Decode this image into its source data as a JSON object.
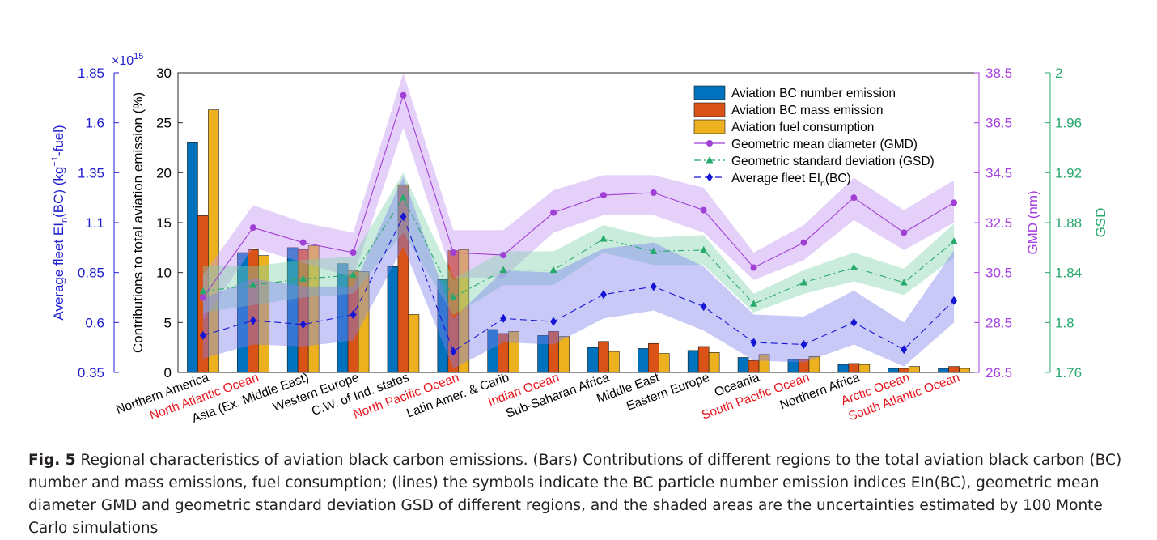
{
  "chart_data": {
    "type": "bar",
    "categories": [
      "Northern America",
      "North Atlantic Ocean",
      "Asia (Ex. Middle East)",
      "Western Europe",
      "C.W. of Ind. states",
      "North Pacific Ocean",
      "Latin Amer. & Carib",
      "Indian Ocean",
      "Sub-Saharan Africa",
      "Middle East",
      "Eastern Europe",
      "Oceania",
      "South Pacific Ocean",
      "Northern Africa",
      "Arctic Ocean",
      "South Atlantic Ocean"
    ],
    "ocean_categories": [
      "North Atlantic Ocean",
      "North Pacific Ocean",
      "Indian Ocean",
      "South Pacific Ocean",
      "Arctic Ocean",
      "South Atlantic Ocean"
    ],
    "bar_series": [
      {
        "name": "Aviation BC number emission",
        "color": "#0072bd",
        "values": [
          23,
          12,
          12.5,
          10.9,
          10.6,
          9.3,
          4.3,
          3.7,
          2.5,
          2.4,
          2.2,
          1.5,
          1.3,
          0.8,
          0.4,
          0.4
        ]
      },
      {
        "name": "Aviation BC mass emission",
        "color": "#d95319",
        "values": [
          15.7,
          12.3,
          12.3,
          10.2,
          18.8,
          12.2,
          3.9,
          4.1,
          3.1,
          2.9,
          2.6,
          1.2,
          1.3,
          0.9,
          0.4,
          0.6
        ]
      },
      {
        "name": "Aviation fuel consumption",
        "color": "#edb120",
        "values": [
          26.3,
          11.7,
          12.7,
          10.1,
          5.8,
          12.3,
          4.1,
          3.6,
          2.1,
          1.9,
          2.0,
          1.8,
          1.6,
          0.8,
          0.6,
          0.4
        ]
      }
    ],
    "line_series": [
      {
        "name": "Geometric mean diameter (GMD)",
        "axis": "GMD (nm)",
        "color": "#a03fd4",
        "band_color": "#c28ff0",
        "values": [
          29.5,
          32.3,
          31.7,
          31.3,
          37.6,
          31.3,
          31.2,
          32.9,
          33.6,
          33.7,
          33.0,
          30.7,
          31.7,
          33.5,
          32.1,
          33.3
        ],
        "lower": [
          28.6,
          31.5,
          30.9,
          30.3,
          36.3,
          30.3,
          30.3,
          32.1,
          32.8,
          32.8,
          32.1,
          30.2,
          31.0,
          32.6,
          31.4,
          32.5
        ],
        "upper": [
          30.4,
          33.2,
          32.5,
          32.1,
          38.5,
          32.2,
          32.2,
          33.8,
          34.4,
          34.4,
          33.9,
          31.3,
          32.4,
          34.3,
          33.0,
          34.2
        ]
      },
      {
        "name": "Geometric standard deviation (GSD)",
        "axis": "GSD",
        "color": "#27a86c",
        "band_color": "#7fd1ab",
        "values": [
          1.825,
          1.83,
          1.835,
          1.838,
          1.9,
          1.82,
          1.842,
          1.842,
          1.867,
          1.857,
          1.858,
          1.815,
          1.832,
          1.844,
          1.832,
          1.865
        ],
        "lower": [
          1.808,
          1.814,
          1.82,
          1.823,
          1.872,
          1.806,
          1.83,
          1.83,
          1.856,
          1.846,
          1.846,
          1.808,
          1.823,
          1.833,
          1.822,
          1.852
        ],
        "upper": [
          1.845,
          1.845,
          1.85,
          1.853,
          1.92,
          1.835,
          1.857,
          1.857,
          1.878,
          1.868,
          1.87,
          1.823,
          1.842,
          1.856,
          1.843,
          1.879
        ]
      },
      {
        "name": "Average fleet EIn(BC)",
        "axis": "Average fleet EIn(BC) (kg-1-fuel)",
        "color": "#1515d6",
        "band_color": "#7f7fee",
        "values": [
          0.535,
          0.61,
          0.59,
          0.64,
          1.13,
          0.455,
          0.62,
          0.605,
          0.74,
          0.78,
          0.68,
          0.5,
          0.49,
          0.6,
          0.465,
          0.71
        ],
        "lower": [
          0.42,
          0.49,
          0.48,
          0.51,
          0.98,
          0.37,
          0.5,
          0.49,
          0.62,
          0.66,
          0.56,
          0.41,
          0.4,
          0.49,
          0.38,
          0.6
        ],
        "upper": [
          0.72,
          0.82,
          0.78,
          0.78,
          1.33,
          0.62,
          0.86,
          0.85,
          0.97,
          1.0,
          0.88,
          0.64,
          0.63,
          0.76,
          0.6,
          0.96
        ]
      }
    ],
    "axes": {
      "left_outer": {
        "label": "Average fleet EIn(BC) (kg-1-fuel)",
        "multiplier": "×10",
        "exponent": "15",
        "range": [
          0.35,
          1.85
        ],
        "ticks": [
          "1.85",
          "1.6",
          "1.35",
          "1.1",
          "0.85",
          "0.6",
          "0.35"
        ],
        "color": "#2020d0"
      },
      "left_inner": {
        "label": "Contributions to total aviation emission (%)",
        "range": [
          0,
          30
        ],
        "ticks": [
          "30",
          "25",
          "20",
          "15",
          "10",
          "5",
          "0"
        ],
        "color": "#000000"
      },
      "right_gmd": {
        "label": "GMD (nm)",
        "range": [
          26.5,
          38.5
        ],
        "ticks": [
          "38.5",
          "36.5",
          "34.5",
          "32.5",
          "30.5",
          "28.5",
          "26.5"
        ],
        "color": "#a640e0"
      },
      "right_gsd": {
        "label": "GSD",
        "range": [
          1.76,
          2.0
        ],
        "ticks": [
          "2",
          "1.96",
          "1.92",
          "1.88",
          "1.84",
          "1.8",
          "1.76"
        ],
        "color": "#27a86c"
      }
    },
    "legend_position": "top-right"
  },
  "caption": {
    "label": "Fig. 5",
    "text": "Regional characteristics of aviation black carbon emissions. (Bars) Contributions of different regions to the total aviation black carbon (BC) number and mass emissions, fuel consumption; (lines) the symbols indicate the BC particle number emission indices EIn(BC), geometric mean diameter GMD and geometric standard deviation GSD of different regions, and the shaded areas are the uncertainties estimated by 100 Monte Carlo simulations"
  }
}
